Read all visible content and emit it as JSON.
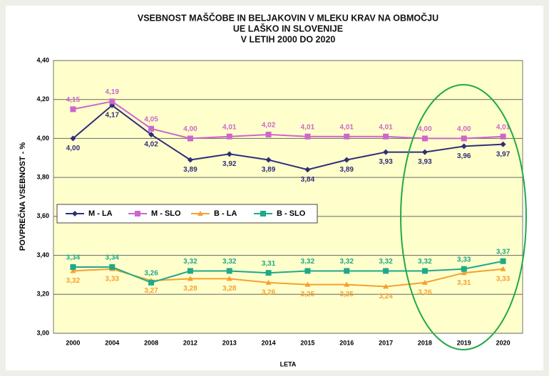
{
  "chart_data": {
    "type": "line",
    "title": [
      "VSEBNOST MAŠČOBE IN BELJAKOVIN V MLEKU KRAV NA OBMOČJU",
      "UE LAŠKO IN SLOVENIJE",
      "V LETIH 2000 DO 2020"
    ],
    "x_label": "LETA",
    "y_label": "POVPREČNA VSEBNOST - %",
    "categories": [
      "2000",
      "2004",
      "2008",
      "2012",
      "2013",
      "2014",
      "2015",
      "2016",
      "2017",
      "2018",
      "2019",
      "2020"
    ],
    "series": [
      {
        "name": "M - LA",
        "color": "#2e2e7a",
        "marker": "diamond",
        "label_side": "below",
        "values": [
          4.0,
          4.17,
          4.02,
          3.89,
          3.92,
          3.89,
          3.84,
          3.89,
          3.93,
          3.93,
          3.96,
          3.97
        ],
        "value_labels": [
          "4,00",
          "4,17",
          "4,02",
          "3,89",
          "3,92",
          "3,89",
          "3,84",
          "3,89",
          "3,93",
          "3,93",
          "3,96",
          "3,97"
        ]
      },
      {
        "name": "M - SLO",
        "color": "#cc66cc",
        "marker": "square",
        "label_side": "above",
        "values": [
          4.15,
          4.19,
          4.05,
          4.0,
          4.01,
          4.02,
          4.01,
          4.01,
          4.01,
          4.0,
          4.0,
          4.01
        ],
        "value_labels": [
          "4,15",
          "4,19",
          "4,05",
          "4,00",
          "4,01",
          "4,02",
          "4,01",
          "4,01",
          "4,01",
          "4,00",
          "4,00",
          "4,01"
        ]
      },
      {
        "name": "B - LA",
        "color": "#f5a030",
        "marker": "triangle",
        "label_side": "below",
        "values": [
          3.32,
          3.33,
          3.27,
          3.28,
          3.28,
          3.26,
          3.25,
          3.25,
          3.24,
          3.26,
          3.31,
          3.33
        ],
        "value_labels": [
          "3,32",
          "3,33",
          "3,27",
          "3,28",
          "3,28",
          "3,26",
          "3,25",
          "3,25",
          "3,24",
          "3,26",
          "3,31",
          "3,33"
        ]
      },
      {
        "name": "B - SLO",
        "color": "#20a88a",
        "marker": "square",
        "label_side": "above",
        "values": [
          3.34,
          3.34,
          3.26,
          3.32,
          3.32,
          3.31,
          3.32,
          3.32,
          3.32,
          3.32,
          3.33,
          3.37
        ],
        "value_labels": [
          "3,34",
          "3,34",
          "3,26",
          "3,32",
          "3,32",
          "3,31",
          "3,32",
          "3,32",
          "3,32",
          "3,32",
          "3,33",
          "3,37"
        ]
      }
    ],
    "ylim": [
      3.0,
      4.4
    ],
    "yticks": [
      {
        "value": 3.0,
        "label": "3,00"
      },
      {
        "value": 3.2,
        "label": "3,20"
      },
      {
        "value": 3.4,
        "label": "3,40"
      },
      {
        "value": 3.6,
        "label": "3,60"
      },
      {
        "value": 3.8,
        "label": "3,80"
      },
      {
        "value": 4.0,
        "label": "4,00"
      },
      {
        "value": 4.2,
        "label": "4,20"
      },
      {
        "value": 4.4,
        "label": "4,40"
      }
    ],
    "grid": true
  }
}
